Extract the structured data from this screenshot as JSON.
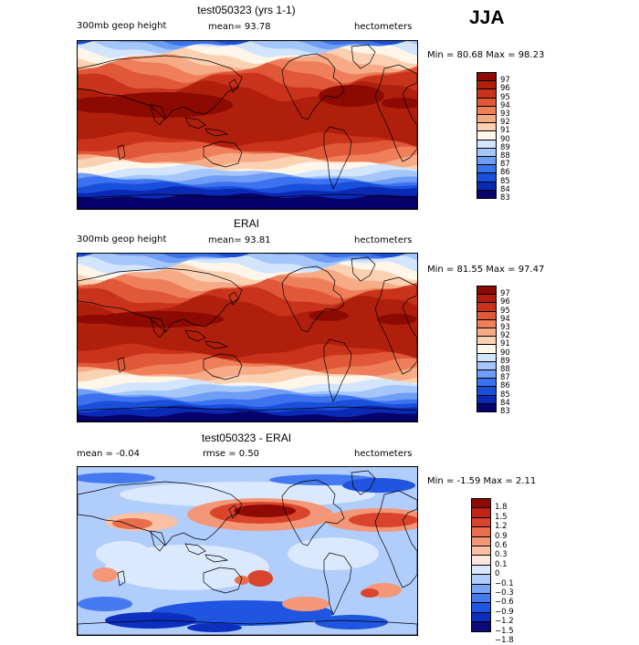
{
  "season": "JJA",
  "colors": {
    "abs_levels": [
      "#08006b",
      "#0a2ab5",
      "#1a4fdc",
      "#3c72ef",
      "#6f9cf4",
      "#a5c6fa",
      "#d3e5fd",
      "#fff6ea",
      "#fbd1b3",
      "#f7aa86",
      "#ef7f5b",
      "#e05838",
      "#c9331c",
      "#b01f0c",
      "#8c0a02"
    ],
    "diff_levels": [
      "#0a0a78",
      "#0d2fbf",
      "#1f55e0",
      "#4479ef",
      "#79a3f5",
      "#b0cdfb",
      "#dbe9fe",
      "#fde6dc",
      "#fac0a3",
      "#f49778",
      "#ea6d4e",
      "#d9452c",
      "#bf2414",
      "#900a05"
    ],
    "coastline": "#000000"
  },
  "panels": [
    {
      "title": "test050323 (yrs 1-1)",
      "left_label": "300mb geop height",
      "center_label": "mean=  93.78",
      "right_label": "hectometers",
      "stats": "Min =  80.68 Max =  98.23",
      "type": "absolute"
    },
    {
      "title": "ERAI",
      "left_label": "300mb geop height",
      "center_label": "mean=  93.81",
      "right_label": "hectometers",
      "stats": "Min =  81.55 Max =  97.47",
      "type": "absolute"
    },
    {
      "title": "test050323 - ERAI",
      "left_label": "mean =  -0.04",
      "center_label": "rmse =   0.50",
      "right_label": "hectometers",
      "stats": "Min =  -1.59 Max =   2.11",
      "type": "difference"
    }
  ],
  "chart_data": [
    {
      "type": "heatmap",
      "title": "test050323 (yrs 1-1)",
      "variable": "300mb geop height",
      "units": "hectometers",
      "mean": 93.78,
      "min": 80.68,
      "max": 98.23,
      "colorbar_ticks": [
        "97",
        "96",
        "95",
        "94",
        "93",
        "92",
        "91",
        "90",
        "89",
        "88",
        "87",
        "86",
        "85",
        "84",
        "83"
      ]
    },
    {
      "type": "heatmap",
      "title": "ERAI",
      "variable": "300mb geop height",
      "units": "hectometers",
      "mean": 93.81,
      "min": 81.55,
      "max": 97.47,
      "colorbar_ticks": [
        "97",
        "96",
        "95",
        "94",
        "93",
        "92",
        "91",
        "90",
        "89",
        "88",
        "87",
        "86",
        "85",
        "84",
        "83"
      ]
    },
    {
      "type": "heatmap",
      "title": "test050323 - ERAI",
      "units": "hectometers",
      "mean": -0.04,
      "rmse": 0.5,
      "min": -1.59,
      "max": 2.11,
      "colorbar_ticks": [
        "1.8",
        "1.5",
        "1.2",
        "0.9",
        "0.6",
        "0.3",
        "0.1",
        "0",
        "−0.1",
        "−0.3",
        "−0.6",
        "−0.9",
        "−1.2",
        "−1.5",
        "−1.8"
      ]
    }
  ]
}
